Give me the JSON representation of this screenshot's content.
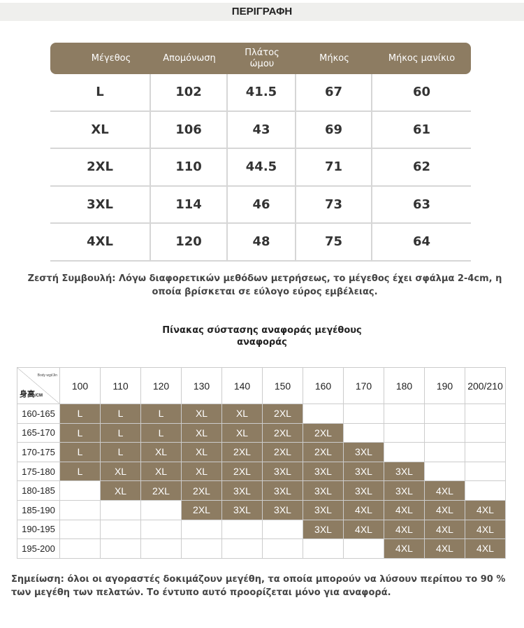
{
  "header": {
    "title": "ΠΕΡΙΓΡΑΦΗ"
  },
  "size_table": {
    "columns": [
      "Μέγεθος",
      "Απομόνωση",
      "Πλάτος ώμου",
      "Μήκος",
      "Μήκος μανίκιο"
    ],
    "rows": [
      [
        "L",
        "102",
        "41.5",
        "67",
        "60"
      ],
      [
        "XL",
        "106",
        "43",
        "69",
        "61"
      ],
      [
        "2XL",
        "110",
        "44.5",
        "71",
        "62"
      ],
      [
        "3XL",
        "114",
        "46",
        "73",
        "63"
      ],
      [
        "4XL",
        "120",
        "48",
        "75",
        "64"
      ]
    ]
  },
  "tip": "Ζεστή Συμβουλή: Λόγω διαφορετικών μεθόδων μετρήσεως, το μέγεθος έχει σφάλμα 2-4cm, η οποία βρίσκεται σε εύλογο εύρος εμβέλειας.",
  "ref_table": {
    "title": "Πίνακας σύστασης αναφοράς μεγέθους αναφοράς",
    "corner_top": "Body wgt/Jin",
    "corner_bottom": "身高",
    "corner_unit": "/CM",
    "weights": [
      "100",
      "110",
      "120",
      "130",
      "140",
      "150",
      "160",
      "170",
      "180",
      "190",
      "200/210"
    ],
    "rows": [
      {
        "height": "160-165",
        "cells": [
          "L",
          "L",
          "L",
          "XL",
          "XL",
          "2XL",
          "",
          "",
          "",
          "",
          ""
        ]
      },
      {
        "height": "165-170",
        "cells": [
          "L",
          "L",
          "L",
          "XL",
          "XL",
          "2XL",
          "2XL",
          "",
          "",
          "",
          ""
        ]
      },
      {
        "height": "170-175",
        "cells": [
          "L",
          "L",
          "XL",
          "XL",
          "2XL",
          "2XL",
          "2XL",
          "3XL",
          "",
          "",
          ""
        ]
      },
      {
        "height": "175-180",
        "cells": [
          "L",
          "XL",
          "XL",
          "XL",
          "2XL",
          "3XL",
          "3XL",
          "3XL",
          "3XL",
          "",
          ""
        ]
      },
      {
        "height": "180-185",
        "cells": [
          "",
          "XL",
          "2XL",
          "2XL",
          "3XL",
          "3XL",
          "3XL",
          "3XL",
          "3XL",
          "4XL",
          ""
        ]
      },
      {
        "height": "185-190",
        "cells": [
          "",
          "",
          "",
          "2XL",
          "3XL",
          "3XL",
          "3XL",
          "4XL",
          "4XL",
          "4XL",
          "4XL"
        ]
      },
      {
        "height": "190-195",
        "cells": [
          "",
          "",
          "",
          "",
          "",
          "",
          "3XL",
          "4XL",
          "4XL",
          "4XL",
          "4XL"
        ]
      },
      {
        "height": "195-200",
        "cells": [
          "",
          "",
          "",
          "",
          "",
          "",
          "",
          "",
          "4XL",
          "4XL",
          "4XL"
        ]
      }
    ]
  },
  "note": "Σημείωση: όλοι οι αγοραστές δοκιμάζουν μεγέθη, τα οποία μπορούν να λύσουν περίπου το 90 % των μεγέθη των πελατών. Το έντυπο αυτό προορίζεται μόνο για αναφορά."
}
